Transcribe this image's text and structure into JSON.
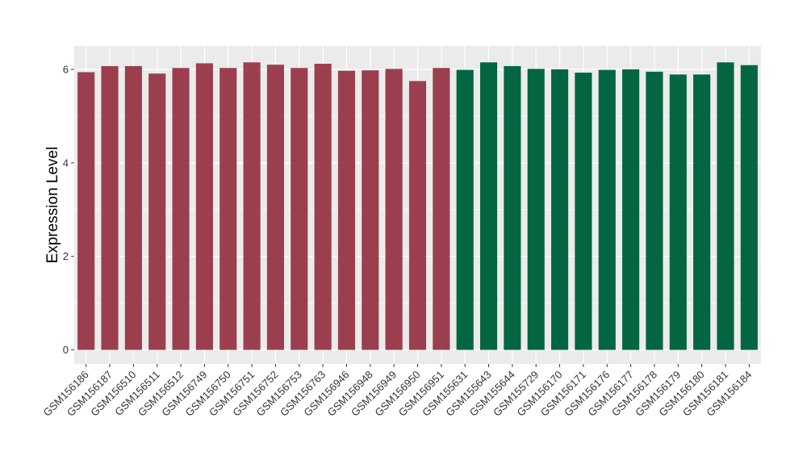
{
  "chart_data": {
    "type": "bar",
    "title": "",
    "xlabel": "",
    "ylabel": "Expression Level",
    "ylim": [
      -0.3,
      6.5
    ],
    "yticks": [
      0,
      2,
      4,
      6
    ],
    "grid": true,
    "legend": "none",
    "categories": [
      "GSM156186",
      "GSM156187",
      "GSM156510",
      "GSM156511",
      "GSM156512",
      "GSM156749",
      "GSM156750",
      "GSM156751",
      "GSM156752",
      "GSM156753",
      "GSM156763",
      "GSM156946",
      "GSM156948",
      "GSM156949",
      "GSM156950",
      "GSM156951",
      "GSM155631",
      "GSM155643",
      "GSM155644",
      "GSM155729",
      "GSM156170",
      "GSM156171",
      "GSM156176",
      "GSM156177",
      "GSM156178",
      "GSM156179",
      "GSM156180",
      "GSM156181",
      "GSM156184"
    ],
    "values": [
      5.94,
      6.07,
      6.07,
      5.91,
      6.03,
      6.13,
      6.03,
      6.15,
      6.1,
      6.03,
      6.12,
      5.97,
      5.98,
      6.01,
      5.75,
      6.03,
      5.99,
      6.15,
      6.07,
      6.01,
      6.0,
      5.93,
      5.99,
      6.0,
      5.95,
      5.89,
      5.89,
      6.15,
      6.09
    ],
    "groups": [
      0,
      0,
      0,
      0,
      0,
      0,
      0,
      0,
      0,
      0,
      0,
      0,
      0,
      0,
      0,
      0,
      1,
      1,
      1,
      1,
      1,
      1,
      1,
      1,
      1,
      1,
      1,
      1,
      1
    ],
    "group_colors": [
      "#9b3f4f",
      "#036641"
    ],
    "panel_color": "#ebebeb",
    "grid_color": "#ffffff"
  }
}
